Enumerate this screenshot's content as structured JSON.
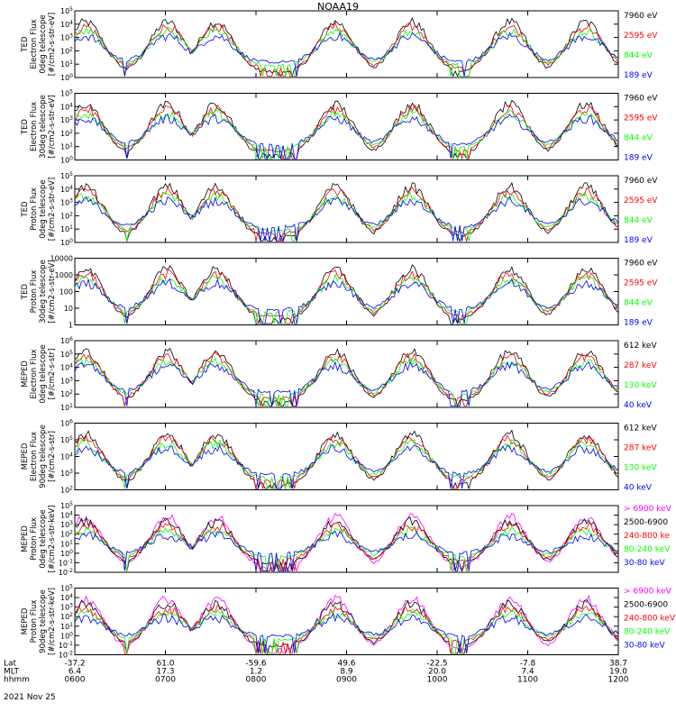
{
  "title": "NOAA19",
  "date": "2021 Nov 25",
  "colors": {
    "black": "#000000",
    "red": "#ff0000",
    "green": "#00ff00",
    "blue": "#0000ff",
    "magenta": "#ff00ff",
    "frame": "#000000"
  },
  "chart_data": [
    {
      "type": "line",
      "ylabel": [
        "TED",
        "Electron Flux",
        "0deg telescope",
        "[#/cm2-s-str-eV]"
      ],
      "yticks": [
        "10^0",
        "10^1",
        "10^2",
        "10^3",
        "10^4",
        "10^5"
      ],
      "ylim": [
        1,
        100000
      ],
      "scale": "log",
      "series": [
        {
          "name": "7960 eV",
          "color": "#000000"
        },
        {
          "name": "2595 eV",
          "color": "#ff0000"
        },
        {
          "name": "844 eV",
          "color": "#00ff00"
        },
        {
          "name": "189 eV",
          "color": "#0000ff"
        }
      ]
    },
    {
      "type": "line",
      "ylabel": [
        "TED",
        "Electron Flux",
        "30deg telescope",
        "[#/cm2-s-str-eV]"
      ],
      "yticks": [
        "10^0",
        "10^1",
        "10^2",
        "10^3",
        "10^4",
        "10^5"
      ],
      "ylim": [
        1,
        100000
      ],
      "scale": "log",
      "series": [
        {
          "name": "7960 eV",
          "color": "#000000"
        },
        {
          "name": "2595 eV",
          "color": "#ff0000"
        },
        {
          "name": "844 eV",
          "color": "#00ff00"
        },
        {
          "name": "189 eV",
          "color": "#0000ff"
        }
      ]
    },
    {
      "type": "line",
      "ylabel": [
        "TED",
        "Proton Flux",
        "0deg telescope",
        "[#/cm2-s-str-eV]"
      ],
      "yticks": [
        "10^0",
        "10^1",
        "10^2",
        "10^3",
        "10^4",
        "10^5"
      ],
      "ylim": [
        1,
        100000
      ],
      "scale": "log",
      "series": [
        {
          "name": "7960 eV",
          "color": "#000000"
        },
        {
          "name": "2595 eV",
          "color": "#ff0000"
        },
        {
          "name": "844 eV",
          "color": "#00ff00"
        },
        {
          "name": "189 eV",
          "color": "#0000ff"
        }
      ]
    },
    {
      "type": "line",
      "ylabel": [
        "TED",
        "Proton Flux",
        "30deg telescope",
        "[#/cm2-s-str-eV]"
      ],
      "yticks": [
        "1",
        "10",
        "100",
        "1000",
        "10000"
      ],
      "ylim": [
        1,
        10000
      ],
      "scale": "log",
      "series": [
        {
          "name": "7960 eV",
          "color": "#000000"
        },
        {
          "name": "2595 eV",
          "color": "#ff0000"
        },
        {
          "name": "844 eV",
          "color": "#00ff00"
        },
        {
          "name": "189 eV",
          "color": "#0000ff"
        }
      ]
    },
    {
      "type": "line",
      "ylabel": [
        "MEPED",
        "Electron Flux",
        "0deg telescope",
        "[#/cm2-s-str]"
      ],
      "yticks": [
        "10^1",
        "10^2",
        "10^3",
        "10^4",
        "10^5",
        "10^6"
      ],
      "ylim": [
        10,
        1000000
      ],
      "scale": "log",
      "series": [
        {
          "name": "612 keV",
          "color": "#000000"
        },
        {
          "name": "287 keV",
          "color": "#ff0000"
        },
        {
          "name": "130 keV",
          "color": "#00ff00"
        },
        {
          "name": "40 keV",
          "color": "#0000ff"
        }
      ]
    },
    {
      "type": "line",
      "ylabel": [
        "MEPED",
        "Electron Flux",
        "90deg telescope",
        "[#/cm2-s-str]"
      ],
      "yticks": [
        "10^2",
        "10^3",
        "10^4",
        "10^5",
        "10^6"
      ],
      "ylim": [
        100,
        1000000
      ],
      "scale": "log",
      "series": [
        {
          "name": "612 keV",
          "color": "#000000"
        },
        {
          "name": "287 keV",
          "color": "#ff0000"
        },
        {
          "name": "130 keV",
          "color": "#00ff00"
        },
        {
          "name": "40 keV",
          "color": "#0000ff"
        }
      ]
    },
    {
      "type": "line",
      "ylabel": [
        "MEPED",
        "Proton Flux",
        "0deg telescope",
        "[#/cm2-s-str-keV]"
      ],
      "yticks": [
        "10^-2",
        "10^-1",
        "10^0",
        "10^1",
        "10^2",
        "10^3",
        "10^4",
        "10^5"
      ],
      "ylim": [
        0.01,
        100000
      ],
      "scale": "log",
      "series": [
        {
          "name": "> 6900 keV",
          "color": "#ff00ff"
        },
        {
          "name": "2500-6900",
          "color": "#000000"
        },
        {
          "name": "240-800 ke",
          "color": "#ff0000"
        },
        {
          "name": "80-240 keV",
          "color": "#00ff00"
        },
        {
          "name": "30-80 keV",
          "color": "#0000ff"
        }
      ]
    },
    {
      "type": "line",
      "ylabel": [
        "MEPED",
        "Proton Flux",
        "90deg telescope",
        "[#/cm2-s-str-keV]"
      ],
      "yticks": [
        "10^-2",
        "10^-1",
        "10^0",
        "10^1",
        "10^2",
        "10^3",
        "10^4",
        "10^5"
      ],
      "ylim": [
        0.01,
        100000
      ],
      "scale": "log",
      "series": [
        {
          "name": "> 6900 keV",
          "color": "#ff00ff"
        },
        {
          "name": "2500-6900",
          "color": "#000000"
        },
        {
          "name": "240-800 keV",
          "color": "#ff0000"
        },
        {
          "name": "80-240 keV",
          "color": "#00ff00"
        },
        {
          "name": "30-80 keV",
          "color": "#0000ff"
        }
      ]
    }
  ],
  "xaxis": {
    "row_labels": [
      "Lat",
      "MLT",
      "hhmm"
    ],
    "ticks": [
      {
        "lat": "-37.2",
        "mlt": "6.4",
        "time": "0600"
      },
      {
        "lat": "61.0",
        "mlt": "17.3",
        "time": "0700"
      },
      {
        "lat": "-59.6",
        "mlt": "1.2",
        "time": "0800"
      },
      {
        "lat": "49.6",
        "mlt": "8.9",
        "time": "0900"
      },
      {
        "lat": "-22.5",
        "mlt": "20.0",
        "time": "1000"
      },
      {
        "lat": "-7.8",
        "mlt": "7.4",
        "time": "1100"
      },
      {
        "lat": "38.7",
        "mlt": "19.0",
        "time": "1200"
      }
    ]
  }
}
